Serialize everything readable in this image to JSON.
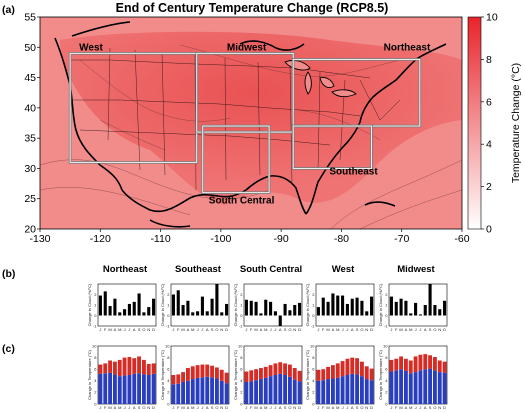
{
  "panels": {
    "a": "(a)",
    "b": "(b)",
    "c": "(c)"
  },
  "chart_data": [
    {
      "type": "heatmap",
      "title": "End of Century Temperature Change (RCP8.5)",
      "x_ticks": [
        -130,
        -120,
        -110,
        -100,
        -90,
        -80,
        -70,
        -60
      ],
      "y_ticks": [
        20,
        25,
        30,
        35,
        40,
        45,
        50,
        55
      ],
      "xlim": [
        -130,
        -60
      ],
      "ylim": [
        20,
        55
      ],
      "colorbar": {
        "label": "Temperature Change (°C)",
        "ticks": [
          0,
          2,
          4,
          6,
          8,
          10
        ],
        "range": [
          0,
          10
        ],
        "color_low": "#ffffff",
        "color_high": "#e8242a"
      },
      "regions": [
        {
          "label": "West",
          "lon": [
            -125,
            -104
          ],
          "lat": [
            31,
            49
          ]
        },
        {
          "label": "Midwest",
          "lon": [
            -104,
            -88
          ],
          "lat": [
            36,
            49
          ]
        },
        {
          "label": "Northeast",
          "lon": [
            -88,
            -67
          ],
          "lat": [
            37,
            48
          ]
        },
        {
          "label": "Southeast",
          "lon": [
            -88,
            -75
          ],
          "lat": [
            30,
            37
          ]
        },
        {
          "label": "South Central",
          "lon": [
            -103,
            -92
          ],
          "lat": [
            26,
            37
          ]
        }
      ]
    },
    {
      "type": "bar",
      "ylabel": "Change in Cloud (%/°C)",
      "categories": [
        "J",
        "F",
        "M",
        "A",
        "M",
        "J",
        "J",
        "A",
        "S",
        "O",
        "N",
        "D"
      ],
      "ylim": [
        -1,
        3
      ],
      "y_ticks": [
        -1,
        0,
        1,
        2
      ],
      "series": [
        {
          "name": "Northeast",
          "values": [
            1.9,
            2.3,
            0.9,
            1.6,
            0.3,
            0.6,
            1.1,
            1.3,
            2.1,
            0.3,
            0.8,
            1.6
          ]
        },
        {
          "name": "Southeast",
          "values": [
            2.0,
            2.4,
            1.0,
            1.4,
            0.3,
            0.4,
            1.8,
            0.4,
            1.6,
            3.0,
            0.3,
            1.1
          ]
        },
        {
          "name": "South Central",
          "values": [
            1.5,
            1.4,
            1.3,
            0.2,
            1.5,
            1.3,
            0.4,
            -1.0,
            1.1,
            0.5,
            1.0,
            1.2
          ]
        },
        {
          "name": "West",
          "values": [
            0.8,
            1.7,
            1.3,
            2.1,
            1.9,
            1.9,
            1.1,
            1.6,
            1.7,
            1.4,
            0.4,
            1.8
          ]
        },
        {
          "name": "Midwest",
          "values": [
            1.8,
            1.3,
            1.6,
            1.4,
            0.2,
            1.2,
            0.1,
            1.0,
            3.0,
            1.0,
            0.6,
            1.4
          ]
        }
      ]
    },
    {
      "type": "bar",
      "ylabel": "Change in Temperature (°C)",
      "categories": [
        "J",
        "F",
        "M",
        "A",
        "M",
        "J",
        "J",
        "A",
        "S",
        "O",
        "N",
        "D"
      ],
      "ylim": [
        0,
        10
      ],
      "y_ticks": [
        0,
        2,
        4,
        6,
        8,
        10
      ],
      "stack_colors": [
        "#2a3fbf",
        "#d72b26"
      ],
      "series": [
        {
          "name": "Northeast",
          "base": [
            5.2,
            5.3,
            5.4,
            5.1,
            4.8,
            4.9,
            5.0,
            5.2,
            5.3,
            5.1,
            5.0,
            5.2
          ],
          "total": [
            6.8,
            7.0,
            7.5,
            7.3,
            7.6,
            8.0,
            8.1,
            7.9,
            8.2,
            7.6,
            6.9,
            7.0
          ]
        },
        {
          "name": "Southeast",
          "base": [
            3.4,
            3.5,
            3.8,
            4.0,
            4.3,
            4.5,
            4.6,
            4.7,
            4.6,
            4.4,
            4.0,
            3.6
          ],
          "total": [
            5.0,
            5.1,
            5.5,
            6.2,
            6.5,
            6.7,
            6.8,
            6.8,
            6.6,
            6.3,
            5.9,
            5.4
          ]
        },
        {
          "name": "South Central",
          "base": [
            3.8,
            3.9,
            4.1,
            4.3,
            4.5,
            4.8,
            5.0,
            5.2,
            5.0,
            4.7,
            4.2,
            3.9
          ],
          "total": [
            5.6,
            5.8,
            6.0,
            6.2,
            6.4,
            6.7,
            7.0,
            7.2,
            7.0,
            6.8,
            6.2,
            5.7
          ]
        },
        {
          "name": "West",
          "base": [
            4.0,
            4.1,
            4.3,
            4.4,
            4.5,
            4.8,
            5.0,
            5.2,
            5.1,
            4.8,
            4.3,
            4.1
          ],
          "total": [
            5.9,
            6.0,
            6.4,
            6.7,
            7.0,
            7.4,
            7.8,
            8.0,
            7.9,
            7.3,
            6.5,
            6.1
          ]
        },
        {
          "name": "Midwest",
          "base": [
            5.6,
            5.8,
            6.0,
            5.7,
            5.3,
            5.5,
            5.8,
            6.0,
            6.1,
            5.8,
            5.5,
            5.4
          ],
          "total": [
            7.6,
            7.8,
            8.2,
            7.8,
            7.5,
            8.2,
            8.5,
            8.6,
            8.4,
            8.1,
            7.5,
            7.3
          ]
        }
      ]
    }
  ]
}
